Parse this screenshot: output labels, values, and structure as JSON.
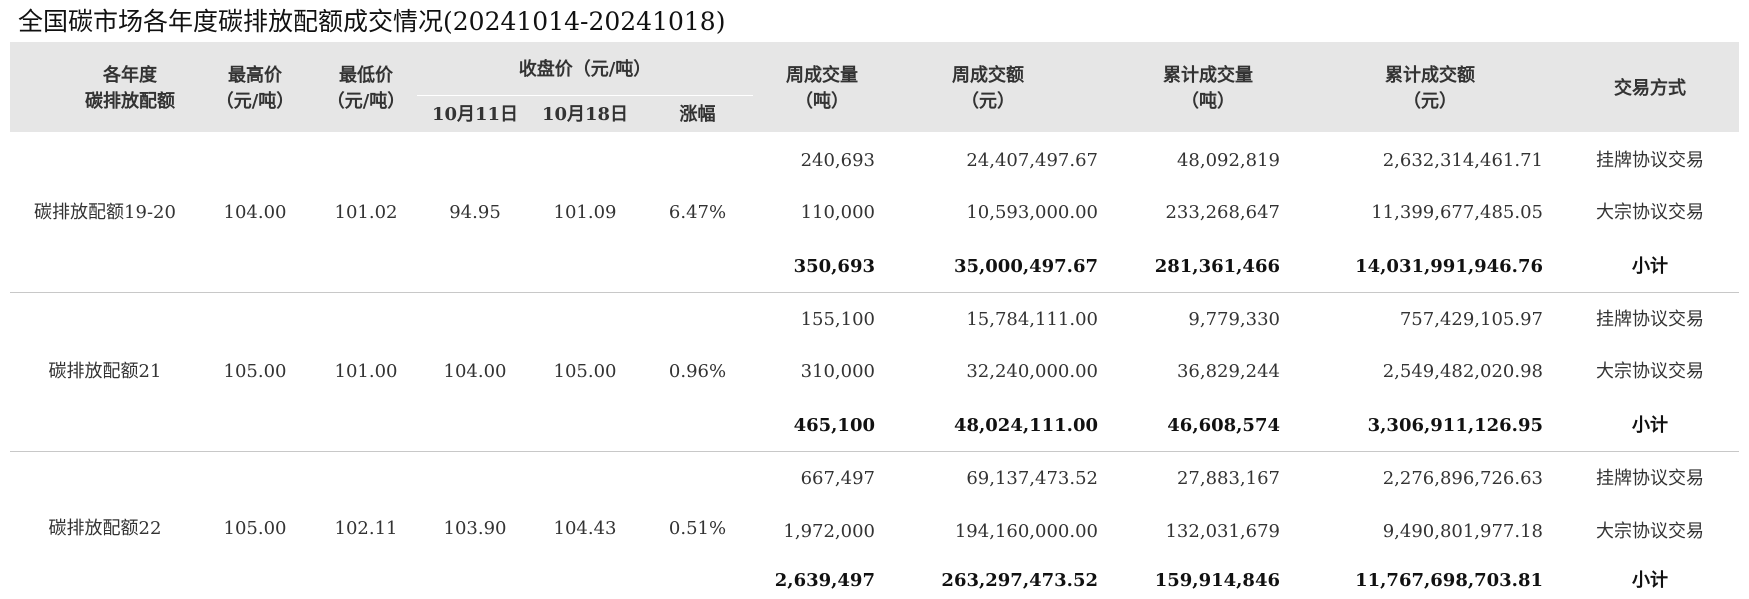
{
  "title": "全国碳市场各年度碳排放配额成交情况(20241014-20241018)",
  "headers": {
    "year": [
      "各年度",
      "碳排放配额"
    ],
    "high": [
      "最高价",
      "（元/吨）"
    ],
    "low": [
      "最低价",
      "（元/吨）"
    ],
    "close_group": "收盘价（元/吨）",
    "close_oct11": "10月11日",
    "close_oct18": "10月18日",
    "change": "涨幅",
    "week_volume": [
      "周成交量",
      "（吨）"
    ],
    "week_amount": [
      "周成交额",
      "（元）"
    ],
    "cum_volume": [
      "累计成交量",
      "（吨）"
    ],
    "cum_amount": [
      "累计成交额",
      "（元）"
    ],
    "method": "交易方式"
  },
  "groups": [
    {
      "name": "碳排放配额19-20",
      "high": "104.00",
      "low": "101.02",
      "close_oct11": "94.95",
      "close_oct18": "101.09",
      "change": "6.47%",
      "rows": [
        {
          "week_volume": "240,693",
          "week_amount": "24,407,497.67",
          "cum_volume": "48,092,819",
          "cum_amount": "2,632,314,461.71",
          "method": "挂牌协议交易"
        },
        {
          "week_volume": "110,000",
          "week_amount": "10,593,000.00",
          "cum_volume": "233,268,647",
          "cum_amount": "11,399,677,485.05",
          "method": "大宗协议交易"
        },
        {
          "week_volume": "350,693",
          "week_amount": "35,000,497.67",
          "cum_volume": "281,361,466",
          "cum_amount": "14,031,991,946.76",
          "method": "小计"
        }
      ]
    },
    {
      "name": "碳排放配额21",
      "high": "105.00",
      "low": "101.00",
      "close_oct11": "104.00",
      "close_oct18": "105.00",
      "change": "0.96%",
      "rows": [
        {
          "week_volume": "155,100",
          "week_amount": "15,784,111.00",
          "cum_volume": "9,779,330",
          "cum_amount": "757,429,105.97",
          "method": "挂牌协议交易"
        },
        {
          "week_volume": "310,000",
          "week_amount": "32,240,000.00",
          "cum_volume": "36,829,244",
          "cum_amount": "2,549,482,020.98",
          "method": "大宗协议交易"
        },
        {
          "week_volume": "465,100",
          "week_amount": "48,024,111.00",
          "cum_volume": "46,608,574",
          "cum_amount": "3,306,911,126.95",
          "method": "小计"
        }
      ]
    },
    {
      "name": "碳排放配额22",
      "high": "105.00",
      "low": "102.11",
      "close_oct11": "103.90",
      "close_oct18": "104.43",
      "change": "0.51%",
      "rows": [
        {
          "week_volume": "667,497",
          "week_amount": "69,137,473.52",
          "cum_volume": "27,883,167",
          "cum_amount": "2,276,896,726.63",
          "method": "挂牌协议交易"
        },
        {
          "week_volume": "1,972,000",
          "week_amount": "194,160,000.00",
          "cum_volume": "132,031,679",
          "cum_amount": "9,490,801,977.18",
          "method": "大宗协议交易"
        },
        {
          "week_volume": "2,639,497",
          "week_amount": "263,297,473.52",
          "cum_volume": "159,914,846",
          "cum_amount": "11,767,698,703.81",
          "method": "小计"
        }
      ]
    }
  ]
}
